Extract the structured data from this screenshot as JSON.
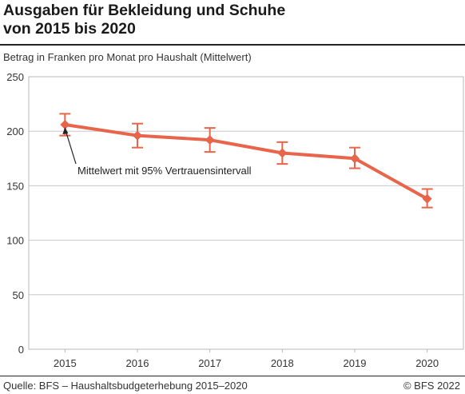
{
  "header": {
    "title_line1": "Ausgaben für Bekleidung und Schuhe",
    "title_line2": "von 2015 bis 2020",
    "subtitle": "Betrag in Franken pro Monat pro Haushalt (Mittelwert)"
  },
  "footer": {
    "source": "Quelle: BFS – Haushaltsbudgeterhebung 2015–2020",
    "copyright": "© BFS 2022"
  },
  "colors": {
    "series": "#e8644a",
    "grid": "#c8c8c8",
    "frame": "#b8b8b8",
    "text": "#333333"
  },
  "chart_data": {
    "type": "line",
    "title": "Ausgaben für Bekleidung und Schuhe von 2015 bis 2020",
    "ylabel": "Betrag in Franken pro Monat pro Haushalt (Mittelwert)",
    "categories": [
      "2015",
      "2016",
      "2017",
      "2018",
      "2019",
      "2020"
    ],
    "series": [
      {
        "values": [
          206,
          196,
          192,
          180,
          175,
          138
        ],
        "ci_low": [
          196,
          185,
          181,
          170,
          166,
          130
        ],
        "ci_high": [
          216,
          207,
          203,
          190,
          185,
          147
        ]
      }
    ],
    "ylim": [
      0,
      250
    ],
    "yticks": [
      0,
      50,
      100,
      150,
      200,
      250
    ],
    "grid": true,
    "annotation": {
      "text": "Mittelwert mit 95% Vertrauensintervall",
      "category": "2015"
    }
  }
}
